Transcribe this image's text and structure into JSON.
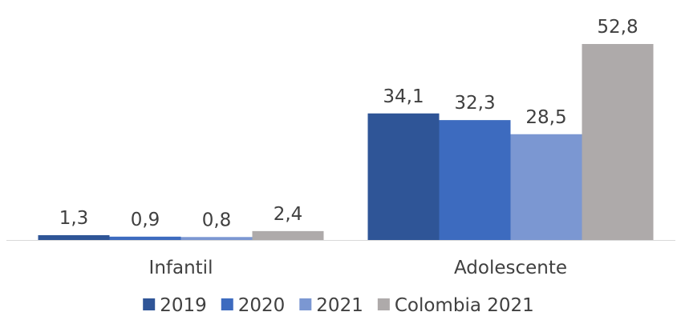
{
  "chart_data": {
    "type": "bar",
    "categories": [
      "Infantil",
      "Adolescente"
    ],
    "series": [
      {
        "name": "2019",
        "values": [
          1.3,
          34.1
        ],
        "labels": [
          "1,3",
          "34,1"
        ],
        "color": "#2f5597"
      },
      {
        "name": "2020",
        "values": [
          0.9,
          32.3
        ],
        "labels": [
          "0,9",
          "32,3"
        ],
        "color": "#3d6bbf"
      },
      {
        "name": "2021",
        "values": [
          0.8,
          28.5
        ],
        "labels": [
          "0,8",
          "28,5"
        ],
        "color": "#7b97d2"
      },
      {
        "name": "Colombia 2021",
        "values": [
          2.4,
          52.8
        ],
        "labels": [
          "2,4",
          "52,8"
        ],
        "color": "#aeaaaa"
      }
    ],
    "title": "",
    "xlabel": "",
    "ylabel": "",
    "ylim": [
      0,
      55
    ],
    "grid": false,
    "legend": "bottom",
    "axis_color": "#d9d9d9"
  }
}
